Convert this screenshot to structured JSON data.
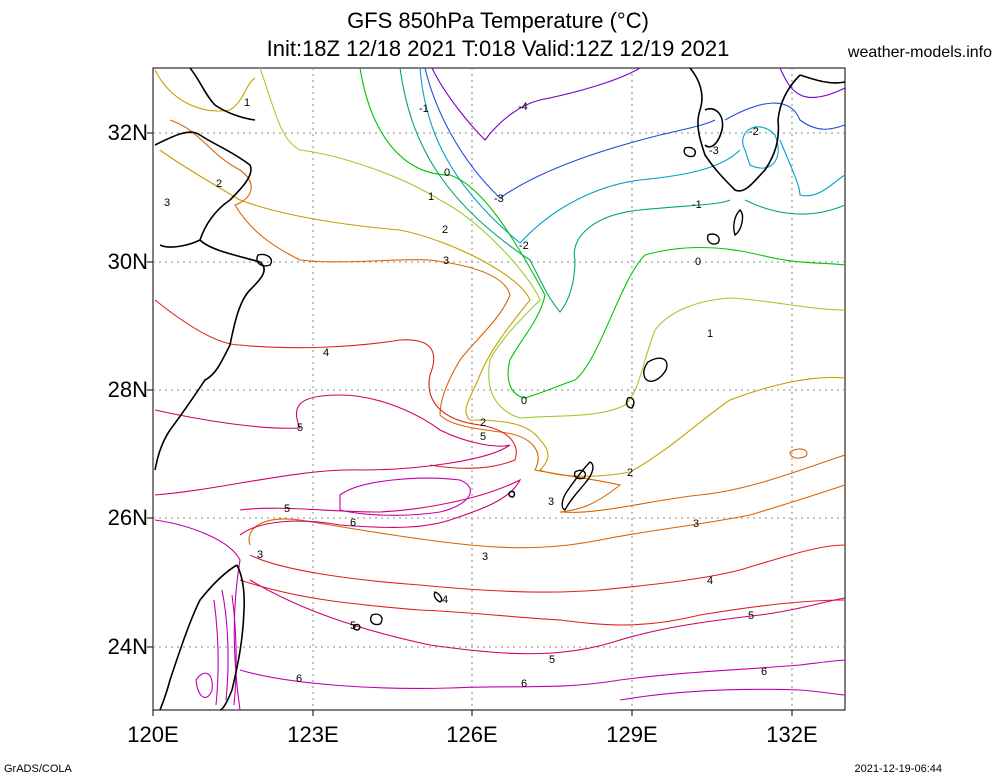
{
  "title_line1": "GFS 850hPa Temperature (°C)",
  "title_line2": "Init:18Z 12/18 2021 T:018 Valid:12Z 12/19 2021",
  "credit": "weather-models.info",
  "footer_left": "GrADS/COLA",
  "footer_right": "2021-12-19-06:44",
  "lat_labels": [
    "32N",
    "30N",
    "28N",
    "26N",
    "24N"
  ],
  "lon_labels": [
    "120E",
    "123E",
    "126E",
    "129E",
    "132E"
  ],
  "contour_labels": [
    "1",
    "2",
    "3",
    "-1",
    "0",
    "1",
    "2",
    "3",
    "-4",
    "-3",
    "-2",
    "4",
    "0",
    "1",
    "-1",
    "-2",
    "-3",
    "2",
    "5",
    "0",
    "3",
    "5",
    "6",
    "5",
    "3",
    "2",
    "3",
    "3",
    "4",
    "5",
    "4",
    "6",
    "5",
    "6",
    "5",
    "6",
    "-1",
    "-2",
    "2",
    "2"
  ],
  "colors": {
    "m4": "#7a00c8",
    "m3": "#1f4fd8",
    "m2": "#00a0c8",
    "m1": "#00a868",
    "z0": "#00c400",
    "p1": "#9acd32",
    "p2": "#c8a000",
    "p3": "#d86400",
    "p4": "#e02020",
    "p5": "#d0006a",
    "p6": "#c000b0"
  }
}
